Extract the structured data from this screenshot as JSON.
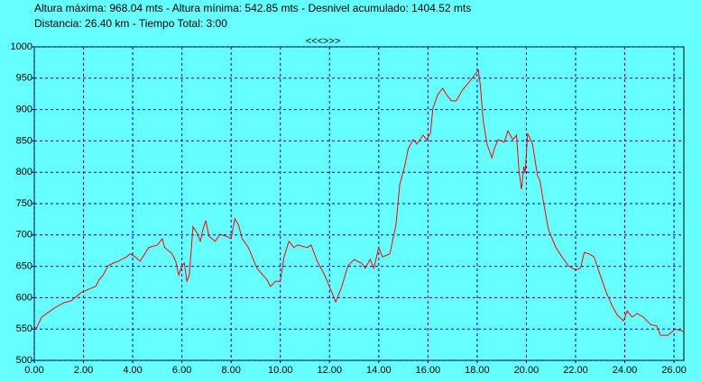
{
  "chart_data": {
    "type": "line",
    "title": "Altura máxima: 968.04 mts - Altura mínima: 542.85 mts - Desnivel acumulado: 1404.52 mts",
    "subtitle": "Distancia: 26.40 km - Tiempo Total: 3:00",
    "navigation": "<<<>>>",
    "x": [
      0,
      0.07,
      0.3,
      0.8,
      1.2,
      1.5,
      1.9,
      2.3,
      2.5,
      2.65,
      2.8,
      3.0,
      3.2,
      3.4,
      3.75,
      3.9,
      4.1,
      4.3,
      4.65,
      5.0,
      5.2,
      5.3,
      5.6,
      5.75,
      5.87,
      6.0,
      6.1,
      6.2,
      6.3,
      6.45,
      6.6,
      6.75,
      6.85,
      6.97,
      7.1,
      7.35,
      7.55,
      7.8,
      8.0,
      8.15,
      8.3,
      8.45,
      8.7,
      9.05,
      9.45,
      9.6,
      9.8,
      10.0,
      10.15,
      10.35,
      10.55,
      10.7,
      11.1,
      11.25,
      11.5,
      11.8,
      12.1,
      12.25,
      12.5,
      12.75,
      13.0,
      13.3,
      13.45,
      13.65,
      13.8,
      14.0,
      14.15,
      14.45,
      14.7,
      14.85,
      15.05,
      15.2,
      15.4,
      15.55,
      15.8,
      15.95,
      16.1,
      16.2,
      16.4,
      16.6,
      16.75,
      16.95,
      17.15,
      17.4,
      17.7,
      18.05,
      18.13,
      18.25,
      18.4,
      18.6,
      18.7,
      18.85,
      19.1,
      19.25,
      19.45,
      19.6,
      19.7,
      19.8,
      19.9,
      19.95,
      20.05,
      20.25,
      20.45,
      20.55,
      20.7,
      20.9,
      21.2,
      21.45,
      21.7,
      22.0,
      22.2,
      22.35,
      22.55,
      22.75,
      23.0,
      23.25,
      23.5,
      23.7,
      23.95,
      24.1,
      24.3,
      24.5,
      24.75,
      25.05,
      25.3,
      25.45,
      25.75,
      26.05,
      26.4
    ],
    "series": [
      {
        "name": "Altura",
        "color": "#ff0000",
        "values": [
          555,
          550,
          569,
          583,
          592,
          595,
          608,
          615,
          618,
          630,
          636,
          651,
          655,
          658,
          665,
          670,
          665,
          658,
          680,
          684,
          694,
          680,
          670,
          658,
          636,
          651,
          655,
          626,
          636,
          713,
          704,
          690,
          708,
          723,
          698,
          690,
          701,
          698,
          694,
          726,
          716,
          694,
          680,
          647,
          629,
          618,
          626,
          626,
          665,
          690,
          680,
          684,
          680,
          684,
          658,
          636,
          608,
          593,
          618,
          651,
          661,
          655,
          647,
          661,
          647,
          680,
          665,
          670,
          716,
          780,
          809,
          838,
          852,
          845,
          859,
          852,
          862,
          902,
          924,
          934,
          924,
          914,
          914,
          931,
          945,
          963,
          938,
          881,
          845,
          823,
          838,
          852,
          848,
          866,
          852,
          859,
          802,
          773,
          809,
          799,
          862,
          845,
          795,
          787,
          751,
          708,
          680,
          665,
          651,
          644,
          647,
          672,
          670,
          665,
          636,
          608,
          586,
          572,
          563,
          579,
          569,
          575,
          569,
          557,
          555,
          540,
          540,
          550,
          546
        ]
      }
    ],
    "xlim": [
      0,
      26.4
    ],
    "ylim": [
      500,
      1000
    ],
    "xticks": [
      {
        "value": 0,
        "label": "0.00"
      },
      {
        "value": 2,
        "label": "2.00"
      },
      {
        "value": 4,
        "label": "4.00"
      },
      {
        "value": 6,
        "label": "6.00"
      },
      {
        "value": 8,
        "label": "8.00"
      },
      {
        "value": 10,
        "label": "10.00"
      },
      {
        "value": 12,
        "label": "12.00"
      },
      {
        "value": 14,
        "label": "14.00"
      },
      {
        "value": 16,
        "label": "16.00"
      },
      {
        "value": 18,
        "label": "18.00"
      },
      {
        "value": 20,
        "label": "20.00"
      },
      {
        "value": 22,
        "label": "22.00"
      },
      {
        "value": 24,
        "label": "24.00"
      },
      {
        "value": 26,
        "label": "26.00"
      }
    ],
    "yticks": [
      500,
      550,
      600,
      650,
      700,
      750,
      800,
      850,
      900,
      950,
      1000
    ],
    "grid": true
  }
}
